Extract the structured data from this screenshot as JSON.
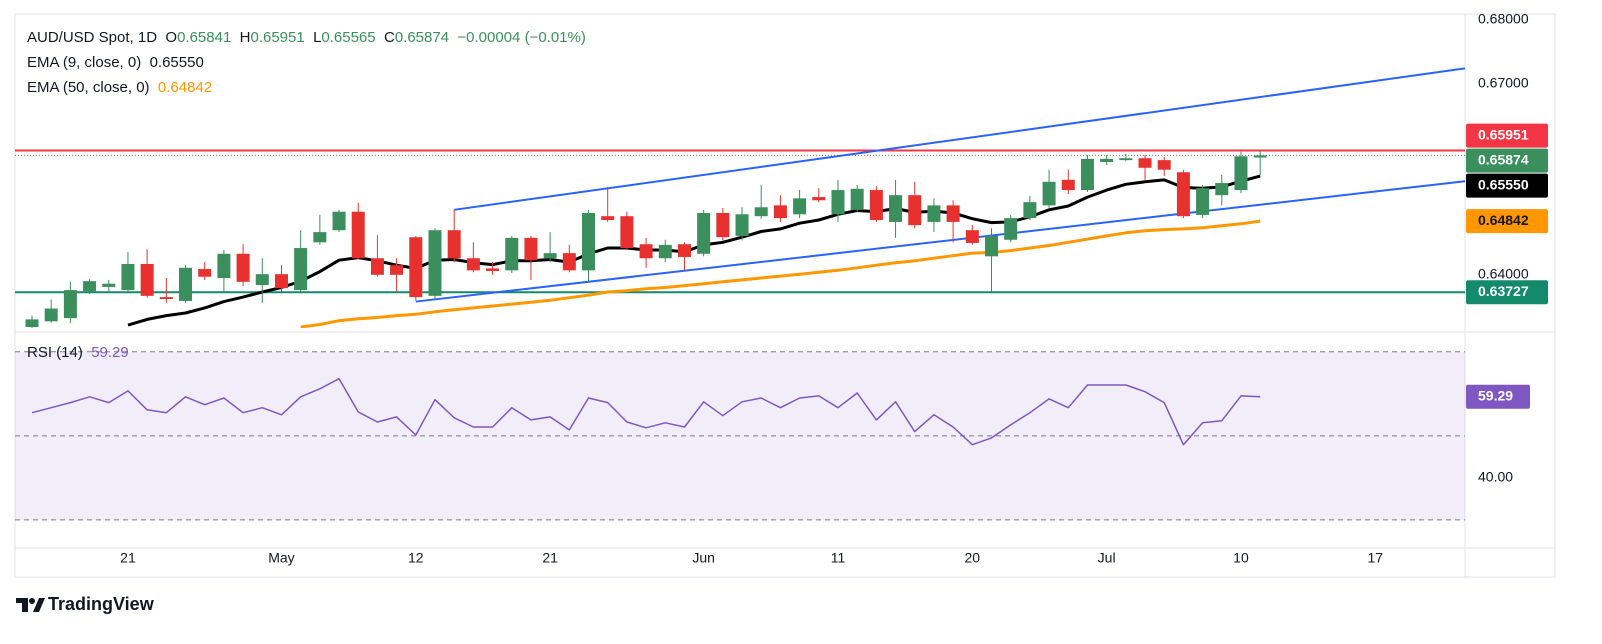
{
  "chart_data": [
    {
      "type": "candlestick",
      "title": "AUD/USD Spot, 1D",
      "ohlc_labels": [
        "O",
        "H",
        "L",
        "C"
      ],
      "change": "−0.00004",
      "change_percent": "(−0.01%)",
      "categories": [
        null,
        null,
        null,
        null,
        null,
        "21",
        null,
        null,
        null,
        null,
        null,
        null,
        null,
        "May",
        null,
        null,
        null,
        null,
        null,
        null,
        "12",
        null,
        null,
        null,
        null,
        null,
        null,
        "21",
        null,
        null,
        null,
        null,
        null,
        null,
        null,
        "Jun",
        null,
        null,
        null,
        null,
        null,
        null,
        "11",
        null,
        null,
        null,
        null,
        null,
        null,
        "20",
        null,
        null,
        null,
        null,
        null,
        null,
        "Jul",
        null,
        null,
        null,
        null,
        null,
        null,
        "10",
        null
      ],
      "future_categories": [
        null,
        null,
        null,
        null,
        null,
        "17"
      ],
      "open": [
        0.6318,
        0.6327,
        0.6332,
        0.6374,
        0.6381,
        0.6376,
        0.6417,
        0.6365,
        0.6359,
        0.6409,
        0.6395,
        0.6433,
        0.6384,
        0.6401,
        0.6376,
        0.6451,
        0.647,
        0.6499,
        0.6426,
        0.6415,
        0.6459,
        0.6367,
        0.647,
        0.6426,
        0.641,
        0.6407,
        0.6458,
        0.6426,
        0.6434,
        0.6407,
        0.6492,
        0.6492,
        0.6448,
        0.6426,
        0.6448,
        0.6433,
        0.6497,
        0.6461,
        0.6492,
        0.6509,
        0.6495,
        0.6522,
        0.6495,
        0.6502,
        0.6533,
        0.6483,
        0.6525,
        0.6483,
        0.6509,
        0.647,
        0.6429,
        0.6455,
        0.6489,
        0.6509,
        0.6549,
        0.6533,
        0.6577,
        0.658,
        0.6583,
        0.658,
        0.6561,
        0.6494,
        0.6525,
        0.6533,
        0.65841
      ],
      "high": [
        0.6336,
        0.6361,
        0.6389,
        0.6393,
        0.6392,
        0.6436,
        0.644,
        0.6395,
        0.6415,
        0.642,
        0.6439,
        0.6448,
        0.6426,
        0.6415,
        0.647,
        0.6494,
        0.6502,
        0.6513,
        0.6462,
        0.6426,
        0.6461,
        0.6473,
        0.6502,
        0.6451,
        0.642,
        0.6461,
        0.6461,
        0.6467,
        0.6447,
        0.6502,
        0.6538,
        0.6499,
        0.6458,
        0.6455,
        0.6451,
        0.6502,
        0.6505,
        0.6506,
        0.6541,
        0.6525,
        0.6533,
        0.6536,
        0.6549,
        0.6541,
        0.6539,
        0.6549,
        0.6546,
        0.652,
        0.6517,
        0.6478,
        0.6473,
        0.6494,
        0.6524,
        0.6565,
        0.6565,
        0.6588,
        0.6588,
        0.659,
        0.6588,
        0.6585,
        0.6565,
        0.6541,
        0.6557,
        0.6593,
        0.65951
      ],
      "low": [
        0.6314,
        0.6325,
        0.6324,
        0.637,
        0.6373,
        0.6373,
        0.6364,
        0.6356,
        0.6356,
        0.6392,
        0.6373,
        0.6382,
        0.6356,
        0.6371,
        0.6373,
        0.6447,
        0.6467,
        0.6424,
        0.6397,
        0.6373,
        0.636,
        0.636,
        0.642,
        0.6404,
        0.64,
        0.6403,
        0.6392,
        0.642,
        0.6404,
        0.6389,
        0.6483,
        0.6439,
        0.6411,
        0.642,
        0.6407,
        0.6429,
        0.6454,
        0.6454,
        0.6488,
        0.6483,
        0.6489,
        0.6514,
        0.6483,
        0.6499,
        0.6483,
        0.6458,
        0.6473,
        0.6467,
        0.6451,
        0.6447,
        0.6373,
        0.6451,
        0.6486,
        0.6505,
        0.6527,
        0.653,
        0.6572,
        0.6578,
        0.6549,
        0.6555,
        0.6489,
        0.6489,
        0.6509,
        0.6528,
        0.65565
      ],
      "close": [
        0.633,
        0.6347,
        0.6376,
        0.639,
        0.6386,
        0.6417,
        0.6367,
        0.6362,
        0.6411,
        0.6397,
        0.6433,
        0.6389,
        0.6401,
        0.6379,
        0.6442,
        0.6467,
        0.6499,
        0.6426,
        0.64,
        0.64,
        0.6365,
        0.647,
        0.6426,
        0.6407,
        0.6406,
        0.6458,
        0.6423,
        0.6434,
        0.6407,
        0.6497,
        0.6486,
        0.6442,
        0.6426,
        0.6447,
        0.6428,
        0.6497,
        0.6459,
        0.6495,
        0.6506,
        0.6489,
        0.652,
        0.6517,
        0.6533,
        0.6535,
        0.6486,
        0.6525,
        0.6478,
        0.6509,
        0.6483,
        0.645,
        0.6461,
        0.6489,
        0.6514,
        0.6546,
        0.6533,
        0.6582,
        0.6582,
        0.6583,
        0.6568,
        0.6565,
        0.6492,
        0.6536,
        0.6544,
        0.6586,
        0.65874
      ],
      "up_color": "#3a8f5c",
      "down_color": "#e8312e",
      "series": [
        {
          "name": "EMA (9, close, 0)",
          "color": "#000000",
          "last_label": "0.65550",
          "label_color": "#131722",
          "values": [
            null,
            null,
            null,
            null,
            null,
            0.6321,
            0.633,
            0.6336,
            0.634,
            0.6348,
            0.6358,
            0.6365,
            0.6373,
            0.638,
            0.639,
            0.6405,
            0.6423,
            0.6427,
            0.6422,
            0.6415,
            0.641,
            0.6423,
            0.6424,
            0.6419,
            0.6416,
            0.6422,
            0.6422,
            0.6424,
            0.642,
            0.6433,
            0.6442,
            0.6442,
            0.6439,
            0.6439,
            0.6436,
            0.6447,
            0.6451,
            0.6459,
            0.6468,
            0.6472,
            0.6481,
            0.6486,
            0.6495,
            0.6501,
            0.6499,
            0.6504,
            0.6498,
            0.65,
            0.6497,
            0.6488,
            0.6482,
            0.6483,
            0.6491,
            0.6502,
            0.6508,
            0.6522,
            0.6533,
            0.6542,
            0.6546,
            0.6549,
            0.6537,
            0.6536,
            0.6538,
            0.6547,
            0.6555
          ]
        },
        {
          "name": "EMA (50, close, 0)",
          "color": "#ff9800",
          "last_label": "0.64842",
          "label_color": "#ff9800",
          "values": [
            null,
            null,
            null,
            null,
            null,
            null,
            null,
            null,
            null,
            null,
            null,
            null,
            null,
            null,
            0.6318,
            0.6322,
            0.6328,
            0.6331,
            0.6333,
            0.6336,
            0.6338,
            0.6342,
            0.6345,
            0.6348,
            0.6351,
            0.6354,
            0.6357,
            0.636,
            0.6364,
            0.6368,
            0.6373,
            0.6375,
            0.6378,
            0.638,
            0.6383,
            0.6386,
            0.6389,
            0.6392,
            0.6395,
            0.6398,
            0.6401,
            0.6404,
            0.6407,
            0.6411,
            0.6415,
            0.6419,
            0.6422,
            0.6426,
            0.643,
            0.6434,
            0.6435,
            0.6438,
            0.6442,
            0.6446,
            0.6451,
            0.6456,
            0.6461,
            0.6466,
            0.6469,
            0.6471,
            0.6472,
            0.6474,
            0.6477,
            0.648,
            0.64842
          ]
        }
      ],
      "trend_lines": [
        {
          "color": "#2962ff",
          "points": [
            {
              "x": 22,
              "y": 0.6502
            },
            {
              "x": 64,
              "y": 0.6679
            }
          ]
        },
        {
          "color": "#2962ff",
          "points": [
            {
              "x": 20,
              "y": 0.6358
            },
            {
              "x": 64,
              "y": 0.651
            }
          ]
        }
      ],
      "horizontal_lines": [
        {
          "value": 0.65951,
          "color": "#f23645"
        },
        {
          "value": 0.63727,
          "color": "#138a6b"
        }
      ],
      "ylim": [
        0.63165,
        0.68078
      ],
      "yticks": [
        {
          "value": 0.68,
          "label": "0.68000"
        },
        {
          "value": 0.67,
          "label": "0.67000"
        },
        {
          "value": 0.64,
          "label": "0.64000"
        }
      ],
      "price_labels": [
        {
          "value": 0.65951,
          "label": "0.65951",
          "color": "#f23645",
          "text_color": "#ffffff"
        },
        {
          "value": 0.65874,
          "label": "0.65874",
          "color": "#3a8f5c",
          "text_color": "#ffffff"
        },
        {
          "value": 0.6555,
          "label": "0.65550",
          "color": "#000000",
          "text_color": "#ffffff"
        },
        {
          "value": 0.64842,
          "label": "0.64842",
          "color": "#ff9800",
          "text_color": "#131722"
        },
        {
          "value": 0.63727,
          "label": "0.63727",
          "color": "#138a6b",
          "text_color": "#ffffff"
        }
      ]
    },
    {
      "type": "line",
      "title": "RSI (14)",
      "series": [
        {
          "name": "RSI (14)",
          "color": "#7e57c2",
          "values": [
            55.5,
            56.7,
            57.9,
            59.3,
            57.9,
            60.7,
            56.2,
            55.5,
            59.3,
            57.4,
            59.0,
            55.5,
            56.7,
            55.0,
            59.3,
            61.2,
            63.6,
            55.7,
            53.3,
            54.5,
            50.2,
            58.6,
            54.3,
            52.1,
            52.1,
            56.7,
            53.8,
            54.5,
            51.4,
            59.0,
            57.9,
            53.3,
            51.9,
            53.1,
            52.1,
            58.1,
            54.8,
            58.1,
            59.0,
            56.7,
            59.0,
            59.5,
            56.7,
            60.2,
            53.8,
            58.1,
            51.0,
            55.0,
            52.1,
            47.9,
            49.5,
            52.6,
            55.5,
            58.8,
            56.7,
            62.1,
            62.1,
            62.1,
            60.5,
            57.9,
            47.9,
            53.1,
            53.6,
            59.5,
            59.29
          ]
        }
      ],
      "bands": [
        70,
        50,
        30
      ],
      "band_color": "#7e57c2",
      "ylim": [
        23.3,
        74
      ],
      "yticks": [
        {
          "value": 40,
          "label": "40.00"
        }
      ]
    }
  ],
  "branding": "TradingView"
}
